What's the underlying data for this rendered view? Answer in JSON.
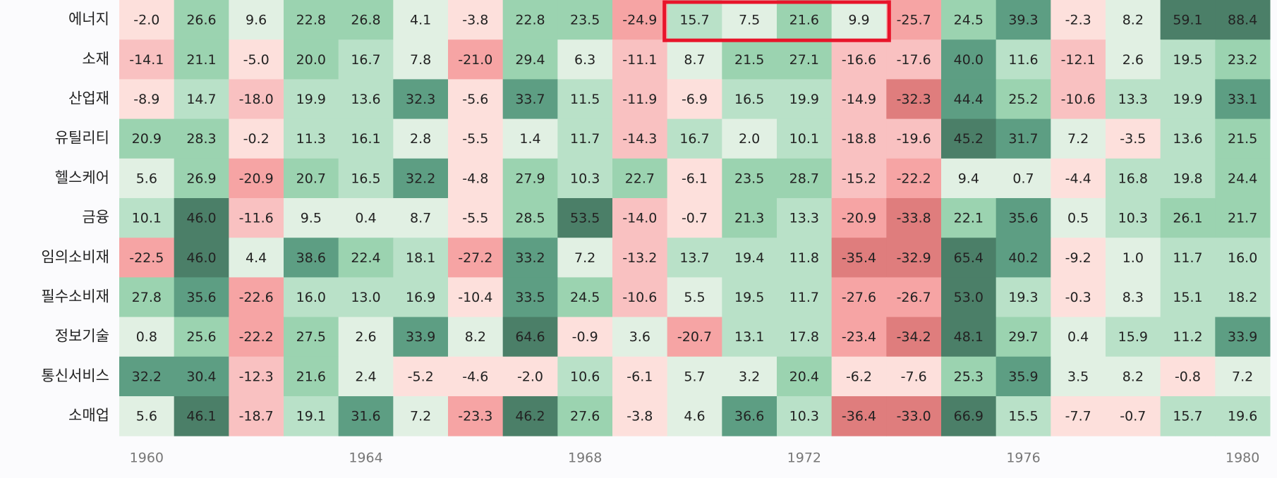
{
  "chart_data": {
    "type": "heatmap",
    "x": [
      "1960",
      null,
      null,
      null,
      "1964",
      null,
      null,
      null,
      "1968",
      null,
      null,
      null,
      "1972",
      null,
      null,
      null,
      "1976",
      null,
      null,
      null,
      "1980"
    ],
    "series": [
      {
        "name": "에너지",
        "values": [
          -2.0,
          26.6,
          9.6,
          22.8,
          26.8,
          4.1,
          -3.8,
          22.8,
          23.5,
          -24.9,
          15.7,
          7.5,
          21.6,
          9.9,
          -25.7,
          24.5,
          39.3,
          -2.3,
          8.2,
          59.1,
          88.4
        ],
        "value_labels": [
          "-2.0",
          "26.6",
          "9.6",
          "22.8",
          "26.8",
          "4.1",
          "-3.8",
          "22.8",
          "23.5",
          "-24.9",
          "15.7",
          "7.5",
          "21.6",
          "9.9",
          "-25.7",
          "24.5",
          "39.3",
          "-2.3",
          "8.2",
          "59.1",
          "88.4"
        ]
      },
      {
        "name": "소재",
        "values": [
          -14.1,
          21.1,
          -5.0,
          20.0,
          16.7,
          7.8,
          -21.0,
          29.4,
          6.3,
          -11.1,
          8.7,
          21.5,
          27.1,
          -16.6,
          -17.6,
          40.0,
          11.6,
          -12.1,
          2.6,
          19.5,
          23.2
        ],
        "value_labels": [
          "-14.1",
          "21.1",
          "-5.0",
          "20.0",
          "16.7",
          "7.8",
          "-21.0",
          "29.4",
          "6.3",
          "-11.1",
          "8.7",
          "21.5",
          "27.1",
          "-16.6",
          "-17.6",
          "40.0",
          "11.6",
          "-12.1",
          "2.6",
          "19.5",
          "23.2"
        ]
      },
      {
        "name": "산업재",
        "values": [
          -8.9,
          14.7,
          -18.0,
          19.9,
          13.6,
          32.3,
          -5.6,
          33.7,
          11.5,
          -11.9,
          -6.9,
          16.5,
          19.9,
          -14.9,
          -32.3,
          44.4,
          25.2,
          -10.6,
          13.3,
          19.9,
          33.1
        ],
        "value_labels": [
          "-8.9",
          "14.7",
          "-18.0",
          "19.9",
          "13.6",
          "32.3",
          "-5.6",
          "33.7",
          "11.5",
          "-11.9",
          "-6.9",
          "16.5",
          "19.9",
          "-14.9",
          "-32.3",
          "44.4",
          "25.2",
          "-10.6",
          "13.3",
          "19.9",
          "33.1"
        ]
      },
      {
        "name": "유틸리티",
        "values": [
          20.9,
          28.3,
          -0.2,
          11.3,
          16.1,
          2.8,
          -5.5,
          1.4,
          11.7,
          -14.3,
          16.7,
          2.0,
          10.1,
          -18.8,
          -19.6,
          45.2,
          31.7,
          7.2,
          -3.5,
          13.6,
          21.5
        ],
        "value_labels": [
          "20.9",
          "28.3",
          "-0.2",
          "11.3",
          "16.1",
          "2.8",
          "-5.5",
          "1.4",
          "11.7",
          "-14.3",
          "16.7",
          "2.0",
          "10.1",
          "-18.8",
          "-19.6",
          "45.2",
          "31.7",
          "7.2",
          "-3.5",
          "13.6",
          "21.5"
        ]
      },
      {
        "name": "헬스케어",
        "values": [
          5.6,
          26.9,
          -20.9,
          20.7,
          16.5,
          32.2,
          -4.8,
          27.9,
          10.3,
          22.7,
          -6.1,
          23.5,
          28.7,
          -15.2,
          -22.2,
          9.4,
          0.7,
          -4.4,
          16.8,
          19.8,
          24.4
        ],
        "value_labels": [
          "5.6",
          "26.9",
          "-20.9",
          "20.7",
          "16.5",
          "32.2",
          "-4.8",
          "27.9",
          "10.3",
          "22.7",
          "-6.1",
          "23.5",
          "28.7",
          "-15.2",
          "-22.2",
          "9.4",
          "0.7",
          "-4.4",
          "16.8",
          "19.8",
          "24.4"
        ]
      },
      {
        "name": "금융",
        "values": [
          10.1,
          46.0,
          -11.6,
          9.5,
          0.4,
          8.7,
          -5.5,
          28.5,
          53.5,
          -14.0,
          -0.7,
          21.3,
          13.3,
          -20.9,
          -33.8,
          22.1,
          35.6,
          0.5,
          10.3,
          26.1,
          21.7
        ],
        "value_labels": [
          "10.1",
          "46.0",
          "-11.6",
          "9.5",
          "0.4",
          "8.7",
          "-5.5",
          "28.5",
          "53.5",
          "-14.0",
          "-0.7",
          "21.3",
          "13.3",
          "-20.9",
          "-33.8",
          "22.1",
          "35.6",
          "0.5",
          "10.3",
          "26.1",
          "21.7"
        ]
      },
      {
        "name": "임의소비재",
        "values": [
          -22.5,
          46.0,
          4.4,
          38.6,
          22.4,
          18.1,
          -27.2,
          33.2,
          7.2,
          -13.2,
          13.7,
          19.4,
          11.8,
          -35.4,
          -32.9,
          65.4,
          40.2,
          -9.2,
          1.0,
          11.7,
          16.0
        ],
        "value_labels": [
          "-22.5",
          "46.0",
          "4.4",
          "38.6",
          "22.4",
          "18.1",
          "-27.2",
          "33.2",
          "7.2",
          "-13.2",
          "13.7",
          "19.4",
          "11.8",
          "-35.4",
          "-32.9",
          "65.4",
          "40.2",
          "-9.2",
          "1.0",
          "11.7",
          "16.0"
        ]
      },
      {
        "name": "필수소비재",
        "values": [
          27.8,
          35.6,
          -22.6,
          16.0,
          13.0,
          16.9,
          -10.4,
          33.5,
          24.5,
          -10.6,
          5.5,
          19.5,
          11.7,
          -27.6,
          -26.7,
          53.0,
          19.3,
          -0.3,
          8.3,
          15.1,
          18.2
        ],
        "value_labels": [
          "27.8",
          "35.6",
          "-22.6",
          "16.0",
          "13.0",
          "16.9",
          "-10.4",
          "33.5",
          "24.5",
          "-10.6",
          "5.5",
          "19.5",
          "11.7",
          "-27.6",
          "-26.7",
          "53.0",
          "19.3",
          "-0.3",
          "8.3",
          "15.1",
          "18.2"
        ]
      },
      {
        "name": "정보기술",
        "values": [
          0.8,
          25.6,
          -22.2,
          27.5,
          2.6,
          33.9,
          8.2,
          64.6,
          -0.9,
          3.6,
          -20.7,
          13.1,
          17.8,
          -23.4,
          -34.2,
          48.1,
          29.7,
          0.4,
          15.9,
          11.2,
          33.9
        ],
        "value_labels": [
          "0.8",
          "25.6",
          "-22.2",
          "27.5",
          "2.6",
          "33.9",
          "8.2",
          "64.6",
          "-0.9",
          "3.6",
          "-20.7",
          "13.1",
          "17.8",
          "-23.4",
          "-34.2",
          "48.1",
          "29.7",
          "0.4",
          "15.9",
          "11.2",
          "33.9"
        ]
      },
      {
        "name": "통신서비스",
        "values": [
          32.2,
          30.4,
          -12.3,
          21.6,
          2.4,
          -5.2,
          -4.6,
          -2.0,
          10.6,
          -6.1,
          5.7,
          3.2,
          20.4,
          -6.2,
          -7.6,
          25.3,
          35.9,
          3.5,
          8.2,
          -0.8,
          7.2
        ],
        "value_labels": [
          "32.2",
          "30.4",
          "-12.3",
          "21.6",
          "2.4",
          "-5.2",
          "-4.6",
          "-2.0",
          "10.6",
          "-6.1",
          "5.7",
          "3.2",
          "20.4",
          "-6.2",
          "-7.6",
          "25.3",
          "35.9",
          "3.5",
          "8.2",
          "-0.8",
          "7.2"
        ]
      },
      {
        "name": "소매업",
        "values": [
          5.6,
          46.1,
          -18.7,
          19.1,
          31.6,
          7.2,
          -23.3,
          46.2,
          27.6,
          -3.8,
          4.6,
          36.6,
          10.3,
          -36.4,
          -33.0,
          66.9,
          15.5,
          -7.7,
          -0.7,
          15.7,
          19.6
        ],
        "value_labels": [
          "5.6",
          "46.1",
          "-18.7",
          "19.1",
          "31.6",
          "7.2",
          "-23.3",
          "46.2",
          "27.6",
          "-3.8",
          "4.6",
          "36.6",
          "10.3",
          "-36.4",
          "-33.0",
          "66.9",
          "15.5",
          "-7.7",
          "-0.7",
          "15.7",
          "19.6"
        ]
      }
    ]
  }
}
